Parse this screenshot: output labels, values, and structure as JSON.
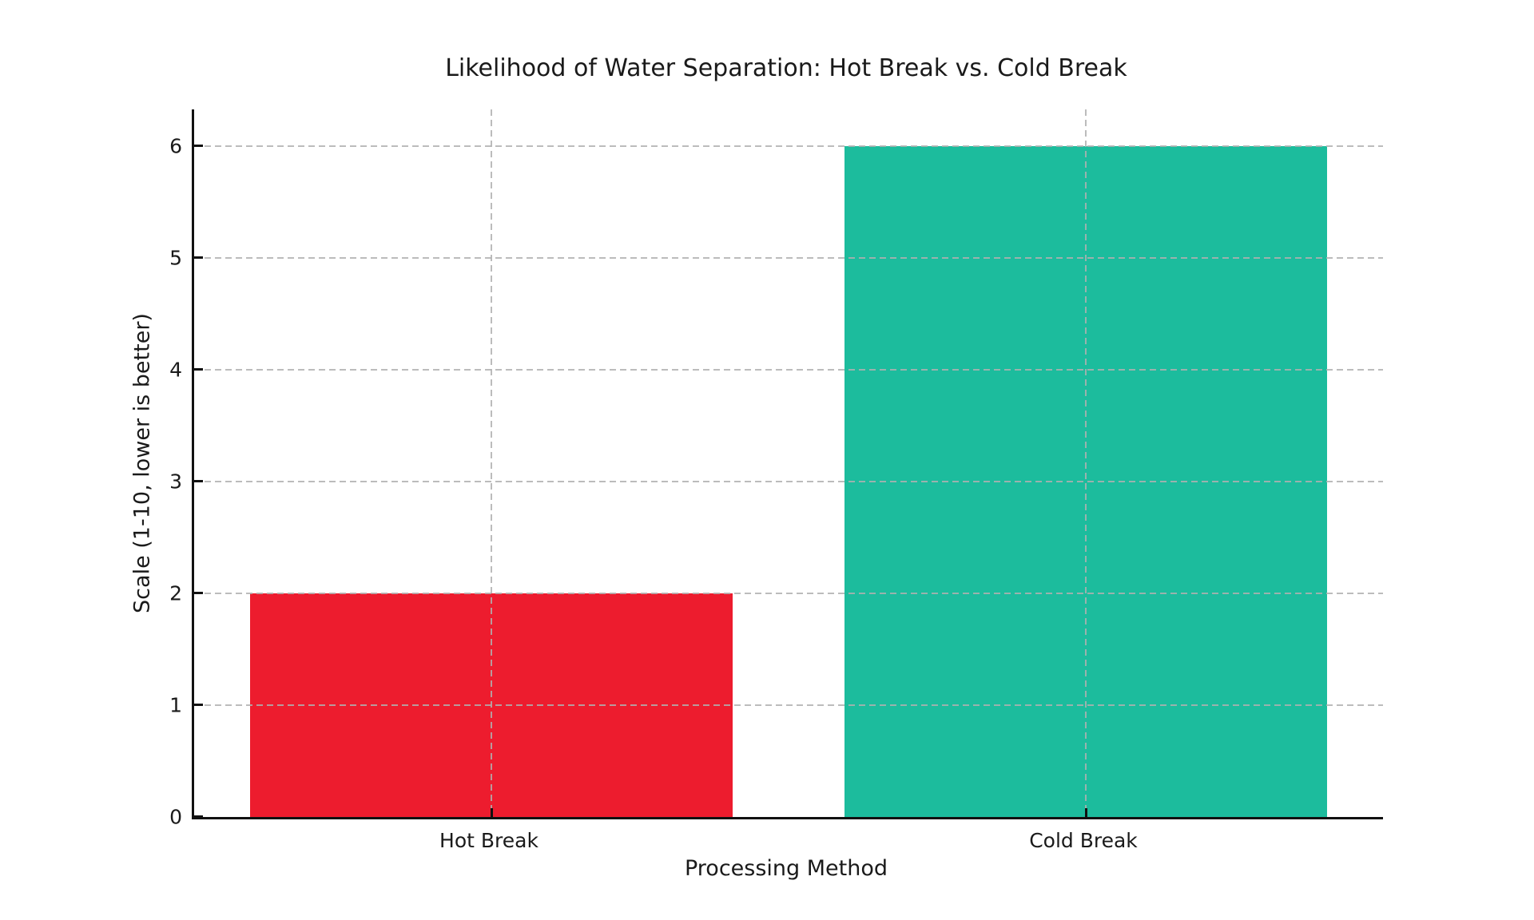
{
  "chart_data": {
    "type": "bar",
    "title": "Likelihood of Water Separation: Hot Break vs. Cold Break",
    "xlabel": "Processing Method",
    "ylabel": "Scale (1-10, lower is better)",
    "categories": [
      "Hot Break",
      "Cold Break"
    ],
    "values": [
      2,
      6
    ],
    "bar_colors": [
      "#ED1C2E",
      "#1CBC9D"
    ],
    "yticks": [
      0,
      1,
      2,
      3,
      4,
      5,
      6
    ],
    "ylim": [
      0,
      6.33
    ],
    "grid": "dashed, horizontal at each y-tick and vertical at each bar center, drawn above bars",
    "tick_direction": "in",
    "legend_position": "none",
    "axis_color": "#111111",
    "grid_color": "#b0b0b0",
    "background": "#ffffff"
  }
}
